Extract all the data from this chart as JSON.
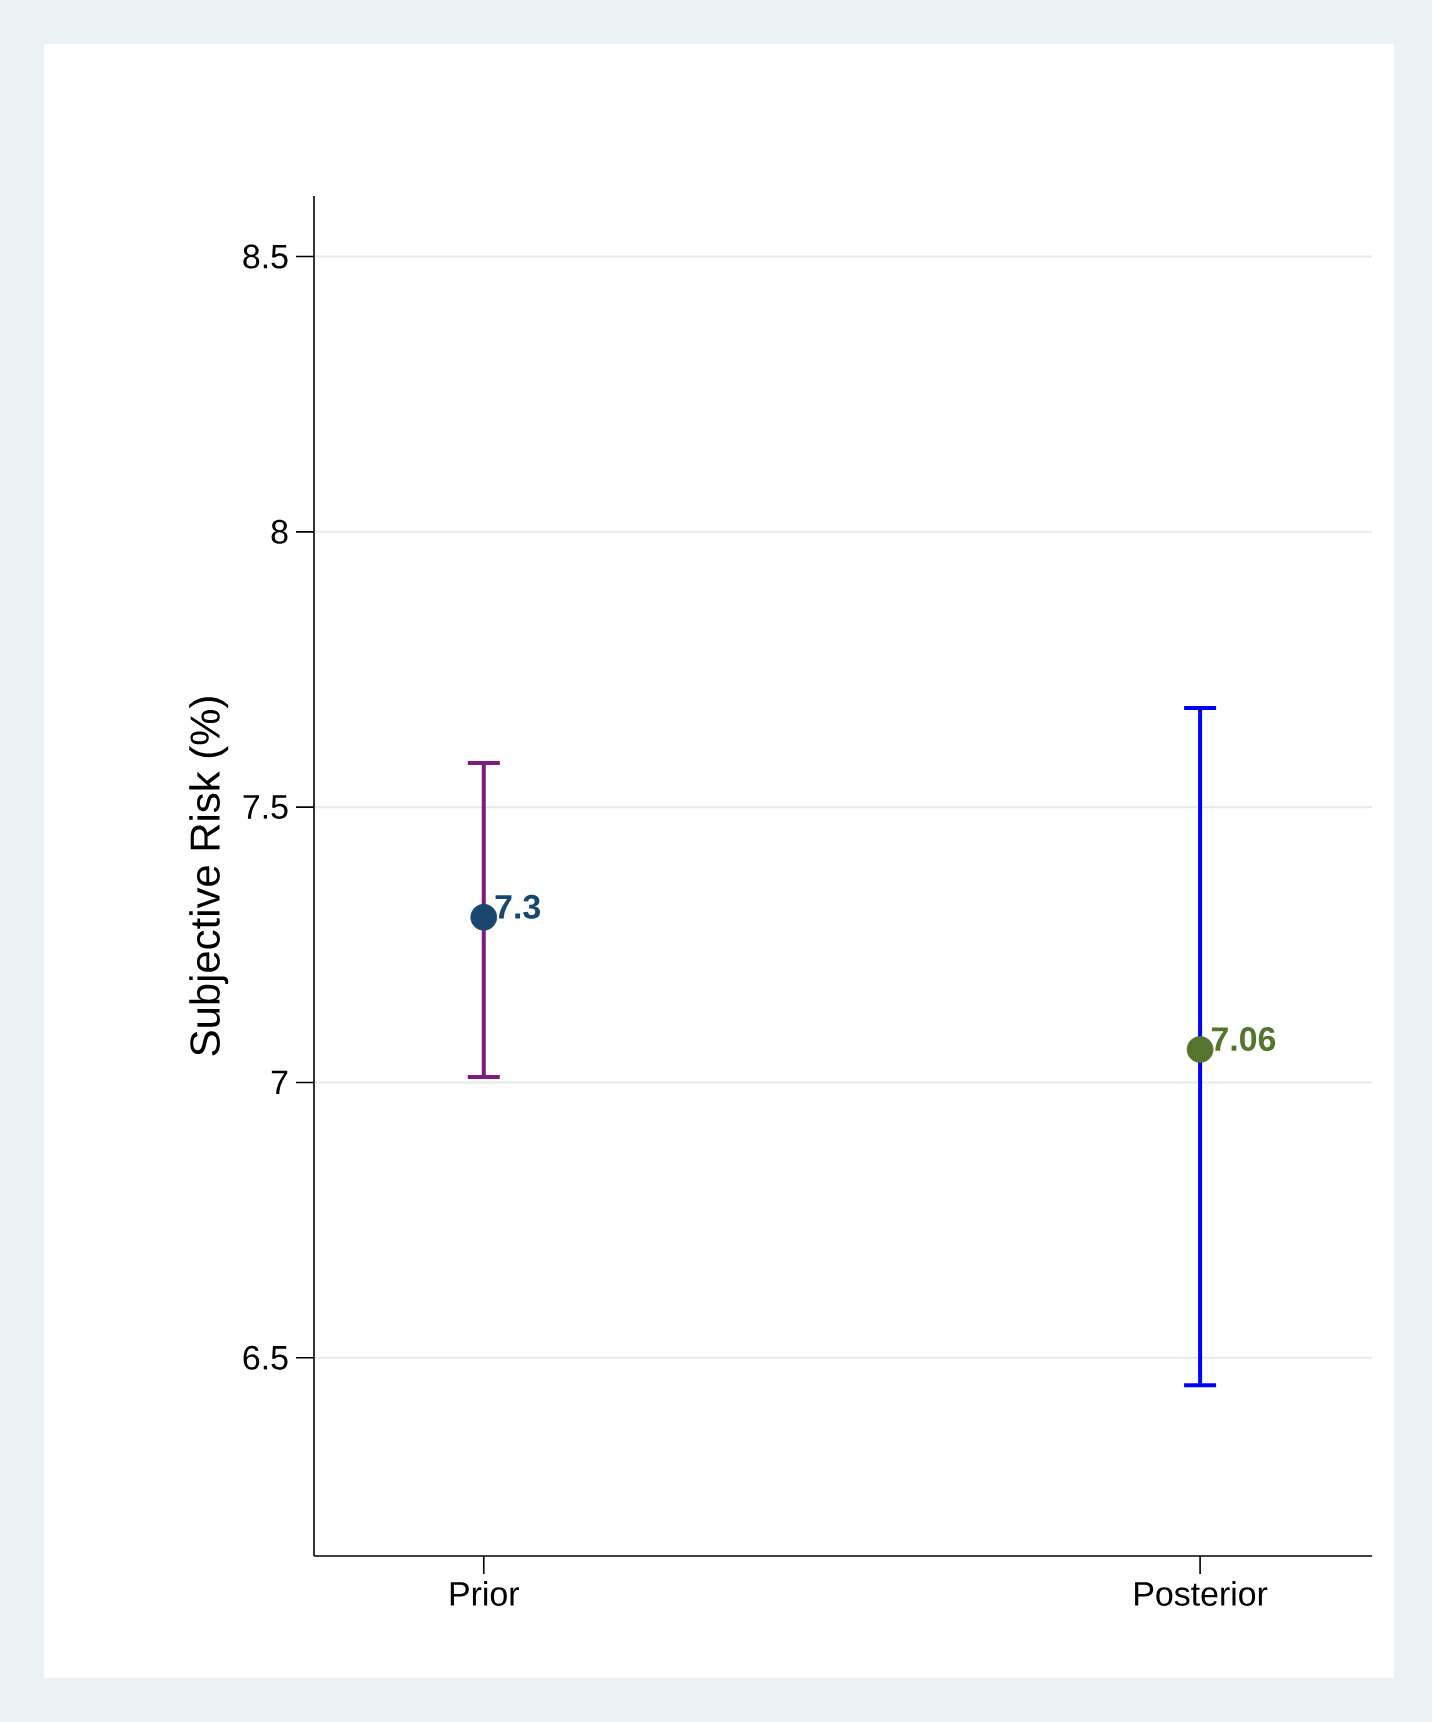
{
  "chart_data": {
    "type": "scatter",
    "categories": [
      "Prior",
      "Posterior"
    ],
    "ylabel": "Subjective Risk (%)",
    "ylim": [
      6.14,
      8.61
    ],
    "yticks": [
      6.5,
      7,
      7.5,
      8,
      8.5
    ],
    "grid": "y",
    "marker": "circle",
    "colors": [
      "#7f1a7f",
      "#0000ff"
    ],
    "series": [
      {
        "color": "#1a476f",
        "values": [
          7.3,
          null
        ],
        "errors": [
          [
            7.01,
            7.58
          ],
          null
        ],
        "value_labels": [
          "7.3",
          null
        ]
      },
      {
        "color": "#55752f",
        "values": [
          null,
          7.06
        ],
        "errors": [
          null,
          [
            6.45,
            7.68
          ]
        ],
        "value_labels": [
          null,
          "7.06"
        ]
      }
    ]
  }
}
